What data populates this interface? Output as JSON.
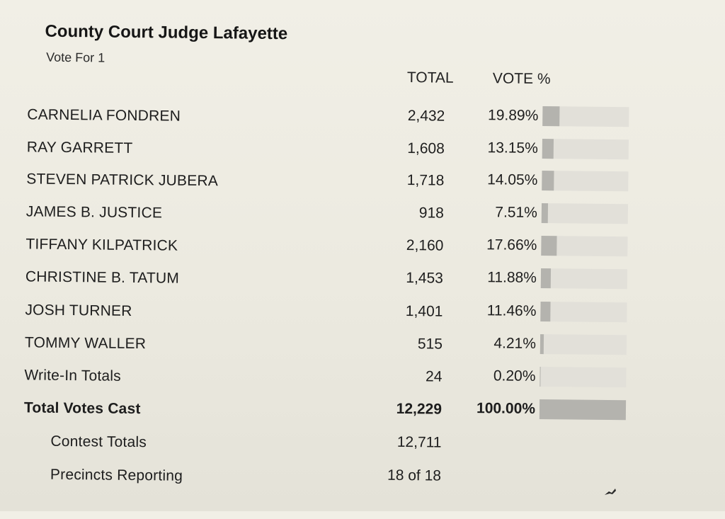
{
  "contest": {
    "title": "County Court Judge Lafayette",
    "vote_for": "Vote For 1"
  },
  "columns": {
    "total": "TOTAL",
    "vote_pct": "VOTE %"
  },
  "candidates": [
    {
      "name": "CARNELIA FONDREN",
      "total": "2,432",
      "vote_pct": "19.89%",
      "share": 0.1989
    },
    {
      "name": "RAY GARRETT",
      "total": "1,608",
      "vote_pct": "13.15%",
      "share": 0.1315
    },
    {
      "name": "STEVEN PATRICK JUBERA",
      "total": "1,718",
      "vote_pct": "14.05%",
      "share": 0.1405
    },
    {
      "name": "JAMES B. JUSTICE",
      "total": "918",
      "vote_pct": "7.51%",
      "share": 0.0751
    },
    {
      "name": "TIFFANY KILPATRICK",
      "total": "2,160",
      "vote_pct": "17.66%",
      "share": 0.1766
    },
    {
      "name": "CHRISTINE B. TATUM",
      "total": "1,453",
      "vote_pct": "11.88%",
      "share": 0.1188
    },
    {
      "name": "JOSH TURNER",
      "total": "1,401",
      "vote_pct": "11.46%",
      "share": 0.1146
    },
    {
      "name": "TOMMY WALLER",
      "total": "515",
      "vote_pct": "4.21%",
      "share": 0.0421
    },
    {
      "name": "Write-In Totals",
      "total": "24",
      "vote_pct": "0.20%",
      "share": 0.002
    }
  ],
  "total_votes_cast": {
    "label": "Total Votes Cast",
    "total": "12,229",
    "vote_pct": "100.00%",
    "share": 1.0
  },
  "contest_totals": {
    "label": "Contest Totals",
    "value": "12,711"
  },
  "precincts_reporting": {
    "label": "Precincts Reporting",
    "value": "18 of 18"
  },
  "colors": {
    "paper": "#eceae0",
    "bar_track": "#e2e0d9",
    "bar_fill": "#b4b3ae",
    "text": "#1d1d1d"
  }
}
